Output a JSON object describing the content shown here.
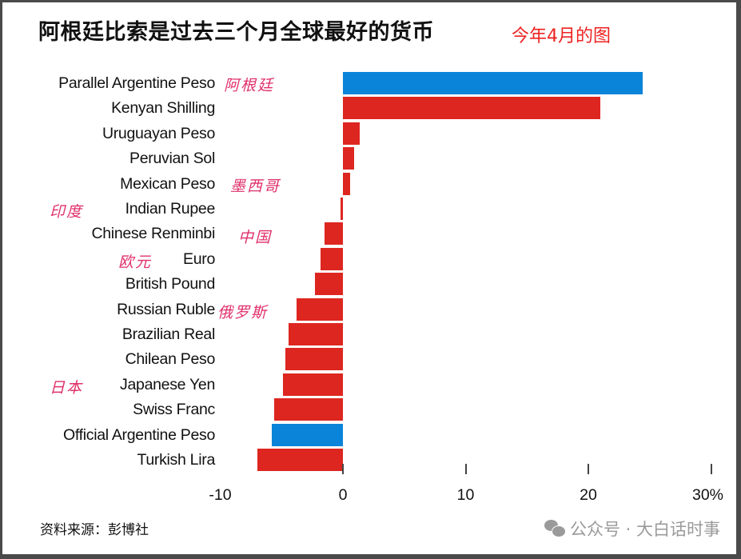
{
  "header": {
    "title": "阿根廷比索是过去三个月全球最好的货币",
    "note": "今年4月的图"
  },
  "footer": {
    "source": "资料来源：彭博社",
    "watermark": "公众号 · 大白话时事"
  },
  "colors": {
    "bar_default": "#dd2620",
    "bar_highlight": "#0a84d8",
    "annotation": "#e0306a",
    "note": "#ee2222"
  },
  "annotations": [
    {
      "text": "阿根廷",
      "row": 0
    },
    {
      "text": "墨西哥",
      "row": 4
    },
    {
      "text": "印度",
      "row": 5
    },
    {
      "text": "中国",
      "row": 6
    },
    {
      "text": "欧元",
      "row": 7
    },
    {
      "text": "俄罗斯",
      "row": 9
    },
    {
      "text": "日本",
      "row": 12
    }
  ],
  "chart_data": {
    "type": "bar",
    "orientation": "horizontal",
    "title": "阿根廷比索是过去三个月全球最好的货币",
    "xlabel": "",
    "ylabel": "",
    "xlim": [
      -10,
      30
    ],
    "x_ticks": [
      "-10",
      "0",
      "10",
      "20",
      "30%"
    ],
    "grid": false,
    "legend": null,
    "categories": [
      "Parallel Argentine Peso",
      "Kenyan Shilling",
      "Uruguayan Peso",
      "Peruvian Sol",
      "Mexican Peso",
      "Indian Rupee",
      "Chinese Renminbi",
      "Euro",
      "British Pound",
      "Russian Ruble",
      "Brazilian Real",
      "Chilean Peso",
      "Japanese Yen",
      "Swiss Franc",
      "Official Argentine Peso",
      "Turkish Lira"
    ],
    "values": [
      24.4,
      21.0,
      1.4,
      0.9,
      0.6,
      -0.2,
      -1.5,
      -1.8,
      -2.3,
      -3.8,
      -4.4,
      -4.7,
      -4.9,
      -5.6,
      -5.8,
      -7.0
    ],
    "highlight": [
      true,
      false,
      false,
      false,
      false,
      false,
      false,
      false,
      false,
      false,
      false,
      false,
      false,
      false,
      true,
      false
    ],
    "unit": "%",
    "source": "资料来源：彭博社"
  }
}
